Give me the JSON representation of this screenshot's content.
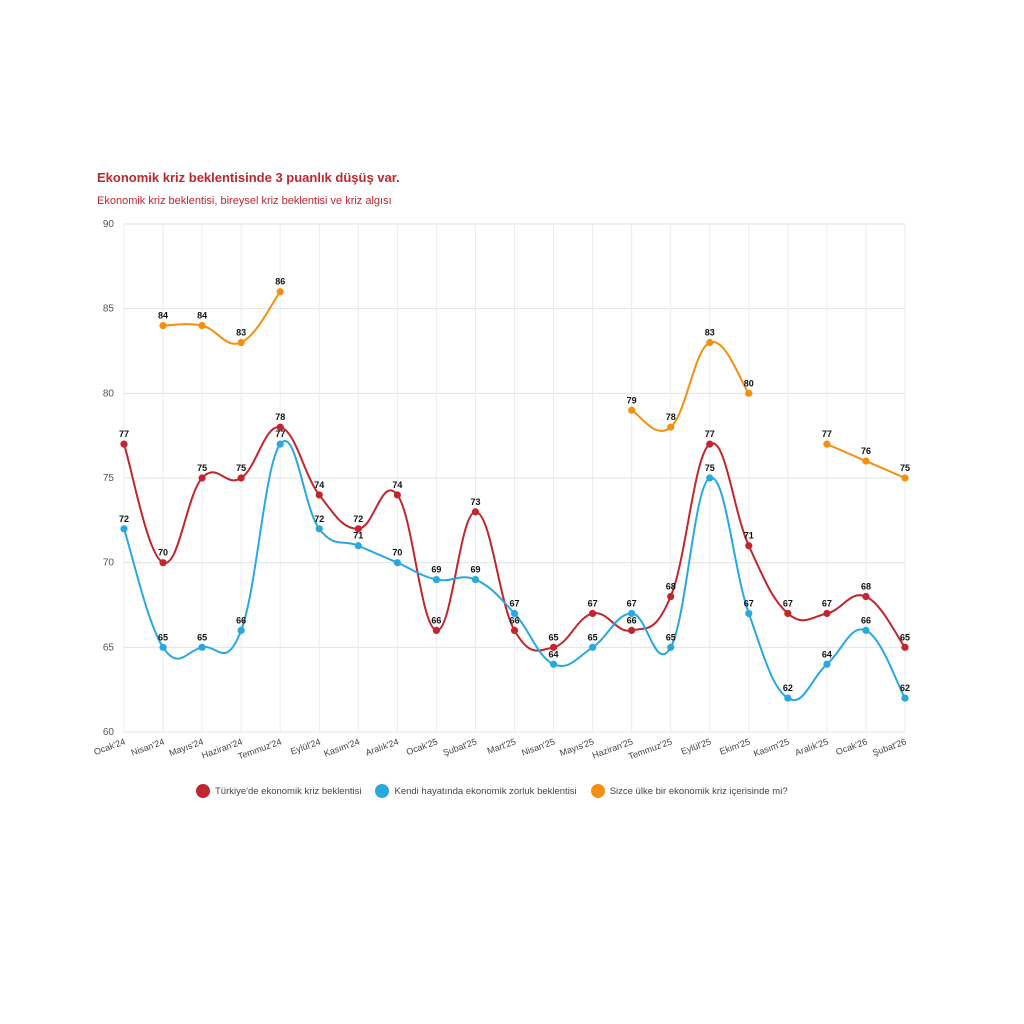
{
  "title": "Ekonomik kriz beklentisinde 3 puanlık düşüş var.",
  "subtitle": "Ekonomik kriz beklentisi, bireysel kriz beklentisi ve kriz algısı",
  "chart_data": {
    "type": "line",
    "categories": [
      "Ocak'24",
      "Nisan'24",
      "Mayıs'24",
      "Haziran'24",
      "Temmuz'24",
      "Eylül'24",
      "Kasım'24",
      "Aralık'24",
      "Ocak'25",
      "Şubat'25",
      "Mart'25",
      "Nisan'25",
      "Mayıs'25",
      "Haziran'25",
      "Temmuz'25",
      "Eylül'25",
      "Ekim'25",
      "Kasım'25",
      "Aralık'25",
      "Ocak'26",
      "Şubat'26"
    ],
    "ylim": [
      60,
      90
    ],
    "yticks": [
      60,
      65,
      70,
      75,
      80,
      85,
      90
    ],
    "grid": true,
    "legend_position": "bottom",
    "series": [
      {
        "name": "Türkiye'de ekonomik kriz beklentisi",
        "color": "#c0262d",
        "values": [
          77,
          70,
          75,
          75,
          78,
          74,
          72,
          74,
          66,
          73,
          66,
          65,
          67,
          66,
          68,
          77,
          71,
          67,
          67,
          68,
          65
        ]
      },
      {
        "name": "Kendi hayatında ekonomik zorluk beklentisi",
        "color": "#29a8e0",
        "values": [
          72,
          65,
          65,
          66,
          77,
          72,
          71,
          70,
          69,
          69,
          67,
          64,
          65,
          67,
          65,
          75,
          67,
          62,
          64,
          66,
          62
        ]
      },
      {
        "name": "Sizce ülke bir ekonomik kriz içerisinde mi?",
        "color": "#f5900f",
        "values": [
          null,
          84,
          84,
          83,
          86,
          null,
          null,
          null,
          null,
          null,
          null,
          null,
          null,
          79,
          78,
          83,
          80,
          null,
          77,
          76,
          75
        ]
      }
    ]
  }
}
